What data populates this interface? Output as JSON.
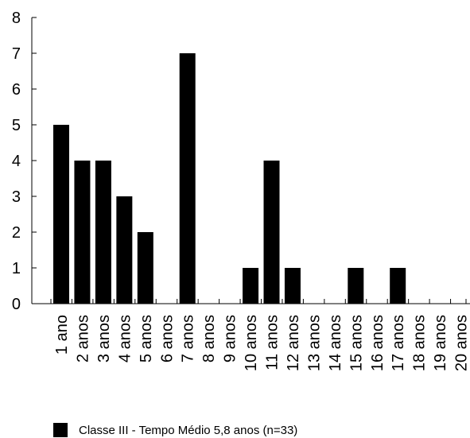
{
  "chart_data": {
    "type": "bar",
    "categories": [
      "1 ano",
      "2 anos",
      "3 anos",
      "4 anos",
      "5 anos",
      "6 anos",
      "7 anos",
      "8 anos",
      "9 anos",
      "10 anos",
      "11 anos",
      "12 anos",
      "13 anos",
      "14 anos",
      "15 anos",
      "16 anos",
      "17 anos",
      "18 anos",
      "19 anos",
      "20 anos"
    ],
    "series": [
      {
        "name": "Classe III - Tempo Médio 5,8 anos (n=33)",
        "values": [
          5,
          4,
          4,
          3,
          2,
          0,
          7,
          0,
          0,
          1,
          4,
          1,
          0,
          0,
          1,
          0,
          1,
          0,
          0,
          0
        ]
      }
    ],
    "ylim": [
      0,
      8
    ],
    "yticks": [
      "0",
      "1",
      "2",
      "3",
      "4",
      "5",
      "6",
      "7",
      "8"
    ],
    "legend_position": "bottom-left",
    "grid": false,
    "bar_color": "#000000"
  }
}
